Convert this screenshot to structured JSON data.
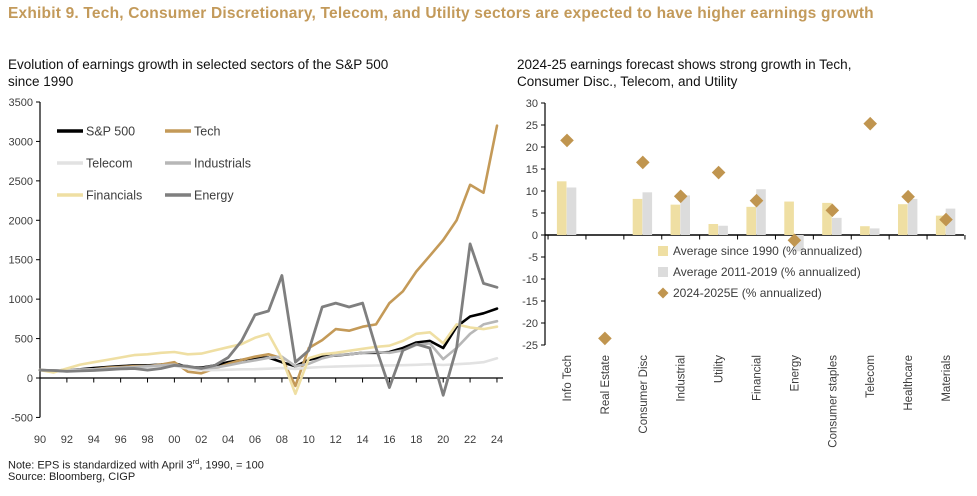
{
  "header": {
    "title": "Exhibit 9. Tech, Consumer Discretionary, Telecom, and Utility sectors are expected to have higher earnings growth"
  },
  "footer": {
    "note_prefix": "Note: EPS is standardized with April 3",
    "note_sup": "rd",
    "note_suffix": ", 1990, = 100",
    "source": "Source: Bloomberg, CIGP"
  },
  "colors": {
    "accent_gold": "#c39a5a",
    "pale_gold": "#efdfa3",
    "light_gray": "#dcdcdc",
    "mid_gray": "#b7b7b7",
    "dark_gray": "#7f7f7f",
    "black": "#000000",
    "axis_text": "#3d3d3d"
  },
  "chart_data": [
    {
      "type": "line",
      "title": "Evolution of earnings growth in selected sectors of the S&P 500 since 1990",
      "x": [
        1990,
        1991,
        1992,
        1993,
        1994,
        1995,
        1996,
        1997,
        1998,
        1999,
        2000,
        2001,
        2002,
        2003,
        2004,
        2005,
        2006,
        2007,
        2008,
        2009,
        2010,
        2011,
        2012,
        2013,
        2014,
        2015,
        2016,
        2017,
        2018,
        2019,
        2020,
        2021,
        2022,
        2023,
        2024
      ],
      "x_tick_labels": [
        "90",
        "92",
        "94",
        "96",
        "98",
        "00",
        "02",
        "04",
        "06",
        "08",
        "10",
        "12",
        "14",
        "16",
        "18",
        "20",
        "22",
        "24"
      ],
      "ylim": [
        -500,
        3500
      ],
      "y_ticks": [
        3500,
        3000,
        2500,
        2000,
        1500,
        1000,
        500,
        0,
        -500
      ],
      "grid": false,
      "legend_position": "top-left-inside",
      "series": [
        {
          "name": "S&P 500",
          "color": "#000000",
          "width": 2.6,
          "values": [
            100,
            95,
            100,
            110,
            125,
            140,
            150,
            160,
            160,
            170,
            185,
            140,
            130,
            160,
            200,
            230,
            255,
            260,
            200,
            150,
            230,
            270,
            285,
            300,
            320,
            320,
            330,
            380,
            450,
            470,
            380,
            650,
            780,
            820,
            880
          ]
        },
        {
          "name": "Tech",
          "color": "#c49a58",
          "width": 2.6,
          "values": [
            100,
            90,
            95,
            100,
            110,
            130,
            140,
            150,
            150,
            170,
            200,
            80,
            60,
            120,
            180,
            230,
            270,
            300,
            250,
            -100,
            380,
            480,
            620,
            600,
            650,
            680,
            950,
            1100,
            1350,
            1550,
            1750,
            2000,
            2450,
            2350,
            3200
          ]
        },
        {
          "name": "Telecom",
          "color": "#e2e2e2",
          "width": 2.6,
          "values": [
            100,
            95,
            100,
            105,
            110,
            110,
            115,
            120,
            135,
            150,
            155,
            120,
            100,
            100,
            105,
            110,
            112,
            118,
            125,
            115,
            130,
            140,
            145,
            150,
            155,
            158,
            160,
            162,
            168,
            175,
            165,
            175,
            185,
            200,
            250
          ]
        },
        {
          "name": "Industrials",
          "color": "#b7b7b7",
          "width": 2.6,
          "values": [
            100,
            90,
            85,
            95,
            110,
            120,
            130,
            140,
            150,
            160,
            170,
            140,
            120,
            130,
            160,
            195,
            225,
            255,
            270,
            150,
            180,
            250,
            290,
            300,
            320,
            330,
            320,
            350,
            420,
            440,
            240,
            380,
            560,
            680,
            720
          ]
        },
        {
          "name": "Financials",
          "color": "#efdfa3",
          "width": 2.6,
          "values": [
            100,
            70,
            120,
            170,
            200,
            230,
            260,
            290,
            300,
            320,
            330,
            300,
            310,
            350,
            390,
            430,
            510,
            560,
            250,
            -200,
            250,
            300,
            320,
            345,
            370,
            395,
            410,
            470,
            560,
            580,
            440,
            680,
            640,
            620,
            650
          ]
        },
        {
          "name": "Energy",
          "color": "#7f7f7f",
          "width": 2.8,
          "values": [
            100,
            95,
            85,
            90,
            95,
            105,
            115,
            120,
            100,
            120,
            160,
            150,
            120,
            160,
            260,
            470,
            800,
            850,
            1300,
            200,
            350,
            900,
            950,
            900,
            950,
            380,
            -120,
            350,
            430,
            380,
            -220,
            380,
            1700,
            1200,
            1150
          ]
        }
      ]
    },
    {
      "type": "bar",
      "title": "2024-25 earnings forecast shows strong growth in Tech, Consumer Disc., Telecom, and Utility",
      "categories": [
        "Info Tech",
        "Real Estate",
        "Consumer Disc",
        "Industrial",
        "Utility",
        "Financial",
        "Energy",
        "Consumer staples",
        "Telecom",
        "Healthcare",
        "Materials"
      ],
      "ylim": [
        -25,
        30
      ],
      "y_ticks": [
        30,
        25,
        20,
        15,
        10,
        5,
        0,
        -5,
        -10,
        -15,
        -20,
        -25
      ],
      "grid": false,
      "legend_position": "center-inside",
      "series": [
        {
          "name": "Average since 1990 (% annualized)",
          "marker": "bar",
          "color": "#efdfa3",
          "values": [
            12.2,
            null,
            8.2,
            6.9,
            2.5,
            6.4,
            7.6,
            7.3,
            2.0,
            7.0,
            4.4
          ]
        },
        {
          "name": "Average 2011-2019 (% annualized)",
          "marker": "bar",
          "color": "#dcdcdc",
          "values": [
            10.8,
            null,
            9.7,
            9.0,
            2.1,
            10.4,
            -3.7,
            3.9,
            1.5,
            8.2,
            6.0
          ]
        },
        {
          "name": "2024-2025E (% annualized)",
          "marker": "diamond",
          "color": "#c0954f",
          "values": [
            21.5,
            -23.5,
            16.5,
            8.8,
            14.2,
            7.8,
            -1.2,
            5.6,
            25.3,
            8.7,
            3.5
          ]
        }
      ]
    }
  ]
}
